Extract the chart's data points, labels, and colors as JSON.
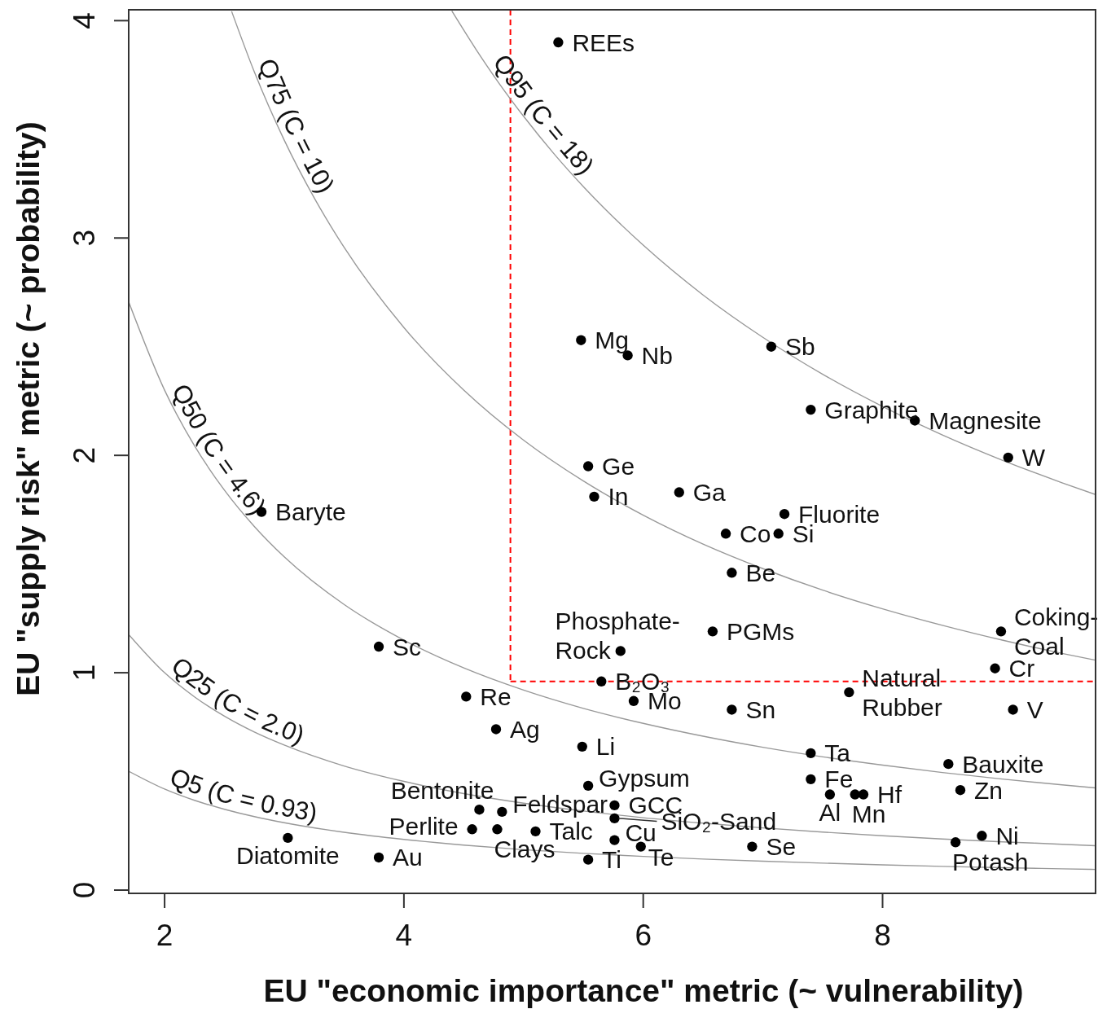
{
  "chart_data": {
    "type": "scatter",
    "xlabel": "EU \"economic importance\" metric (~ vulnerability)",
    "ylabel": "EU \"supply risk\" metric (~ probability)",
    "xlim": [
      1.7,
      9.78
    ],
    "ylim": [
      -0.015,
      4.05
    ],
    "xticks": [
      2,
      4,
      6,
      8
    ],
    "yticks": [
      0,
      1,
      2,
      3,
      4
    ],
    "series": [
      {
        "type": "line",
        "name": "Q5 (C = 0.93)",
        "color": "#999999",
        "x": [
          1.7,
          2,
          2.25,
          2.5,
          2.75,
          3,
          3.5,
          4,
          4.5,
          5,
          5.5,
          6,
          6.5,
          7,
          7.5,
          8,
          8.5,
          9,
          9.5,
          9.78
        ],
        "values": [
          0.547,
          0.465,
          0.413,
          0.372,
          0.338,
          0.31,
          0.266,
          0.233,
          0.207,
          0.186,
          0.169,
          0.155,
          0.143,
          0.133,
          0.124,
          0.116,
          0.109,
          0.103,
          0.098,
          0.095
        ]
      },
      {
        "type": "line",
        "name": "Q25 (C = 2.0)",
        "color": "#999999",
        "x": [
          1.7,
          2,
          2.25,
          2.5,
          2.75,
          3,
          3.5,
          4,
          4.5,
          5,
          5.5,
          6,
          6.5,
          7,
          7.5,
          8,
          8.5,
          9,
          9.5,
          9.78
        ],
        "values": [
          1.176,
          1.0,
          0.889,
          0.8,
          0.727,
          0.667,
          0.571,
          0.5,
          0.444,
          0.4,
          0.364,
          0.333,
          0.308,
          0.286,
          0.267,
          0.25,
          0.235,
          0.222,
          0.211,
          0.204
        ]
      },
      {
        "type": "line",
        "name": "Q50 (C = 4.6)",
        "color": "#999999",
        "x": [
          1.7,
          2,
          2.25,
          2.5,
          2.75,
          3,
          3.5,
          4,
          4.5,
          5,
          5.5,
          6,
          6.5,
          7,
          7.5,
          8,
          8.5,
          9,
          9.5,
          9.78
        ],
        "values": [
          2.706,
          2.3,
          2.044,
          1.84,
          1.673,
          1.533,
          1.314,
          1.15,
          1.022,
          0.92,
          0.836,
          0.767,
          0.708,
          0.657,
          0.613,
          0.575,
          0.541,
          0.511,
          0.484,
          0.47
        ]
      },
      {
        "type": "line",
        "name": "Q75 (C = 10)",
        "color": "#999999",
        "x": [
          2.56,
          2.75,
          3,
          3.25,
          3.5,
          4,
          4.5,
          5,
          5.5,
          6,
          6.5,
          7,
          7.5,
          8,
          8.5,
          9,
          9.5,
          9.78
        ],
        "values": [
          4.043,
          3.764,
          3.45,
          3.185,
          2.957,
          2.588,
          2.3,
          2.07,
          1.882,
          1.725,
          1.592,
          1.479,
          1.38,
          1.294,
          1.218,
          1.15,
          1.089,
          1.058
        ]
      },
      {
        "type": "line",
        "name": "Q95 (C = 18)",
        "color": "#999999",
        "x": [
          4.4,
          4.6,
          4.8,
          5,
          5.25,
          5.5,
          6,
          6.5,
          7,
          7.5,
          8,
          8.5,
          9,
          9.5,
          9.78
        ],
        "values": [
          4.045,
          3.87,
          3.708,
          3.56,
          3.39,
          3.236,
          2.967,
          2.738,
          2.543,
          2.373,
          2.225,
          2.094,
          1.978,
          1.874,
          1.82
        ]
      },
      {
        "color": "#000000",
        "marker": "circle",
        "x": [
          5.29,
          5.48,
          7.07,
          5.87,
          7.4,
          8.27,
          9.05,
          5.54,
          6.3,
          5.59,
          2.81,
          7.18,
          6.69,
          7.13,
          6.74,
          6.58,
          8.99,
          3.79,
          5.81,
          8.94,
          5.65,
          7.72,
          4.52,
          5.92,
          6.74,
          9.09,
          4.77,
          5.49,
          7.4,
          8.55,
          7.4,
          5.54,
          8.65,
          7.56,
          7.77,
          7.84,
          5.76,
          4.63,
          4.82,
          5.76,
          4.57,
          4.78,
          5.1,
          8.83,
          3.03,
          5.76,
          8.61,
          5.98,
          6.91,
          3.79,
          5.54
        ],
        "values": [
          3.9,
          2.53,
          2.5,
          2.46,
          2.21,
          2.16,
          1.99,
          1.95,
          1.83,
          1.81,
          1.74,
          1.73,
          1.64,
          1.64,
          1.46,
          1.19,
          1.19,
          1.12,
          1.1,
          1.02,
          0.96,
          0.91,
          0.89,
          0.87,
          0.83,
          0.83,
          0.74,
          0.66,
          0.63,
          0.58,
          0.51,
          0.48,
          0.46,
          0.44,
          0.44,
          0.44,
          0.39,
          0.37,
          0.36,
          0.33,
          0.28,
          0.28,
          0.27,
          0.25,
          0.24,
          0.23,
          0.22,
          0.2,
          0.2,
          0.15,
          0.14
        ]
      }
    ],
    "ref_lines": [
      {
        "axis": "x",
        "value": 4.89,
        "color": "#ff0000",
        "line_style": "dashed"
      },
      {
        "axis": "y",
        "value": 0.96,
        "color": "#ff0000",
        "line_style": "dashed"
      }
    ],
    "annotations": [
      {
        "text": "REEs",
        "x": 5.29,
        "y": 3.9
      },
      {
        "text": "Mg",
        "x": 5.48,
        "y": 2.53
      },
      {
        "text": "Sb",
        "x": 7.07,
        "y": 2.5
      },
      {
        "text": "Nb",
        "x": 5.87,
        "y": 2.46
      },
      {
        "text": "Graphite",
        "x": 7.4,
        "y": 2.21
      },
      {
        "text": "Magnesite",
        "x": 8.27,
        "y": 2.16
      },
      {
        "text": "W",
        "x": 9.05,
        "y": 1.99
      },
      {
        "text": "Ge",
        "x": 5.54,
        "y": 1.95
      },
      {
        "text": "Ga",
        "x": 6.3,
        "y": 1.83
      },
      {
        "text": "In",
        "x": 5.59,
        "y": 1.81
      },
      {
        "text": "Baryte",
        "x": 2.81,
        "y": 1.74
      },
      {
        "text": "Fluorite",
        "x": 7.18,
        "y": 1.73
      },
      {
        "text": "Co",
        "x": 6.69,
        "y": 1.64
      },
      {
        "text": "Si",
        "x": 7.13,
        "y": 1.64
      },
      {
        "text": "Be",
        "x": 6.74,
        "y": 1.46
      },
      {
        "text": "PGMs",
        "x": 6.58,
        "y": 1.19
      },
      {
        "text": "Coking-Coal",
        "x": 8.99,
        "y": 1.19
      },
      {
        "text": "Sc",
        "x": 3.79,
        "y": 1.12
      },
      {
        "text": "Phosphate-Rock",
        "x": 5.81,
        "y": 1.1
      },
      {
        "text": "Cr",
        "x": 8.94,
        "y": 1.02
      },
      {
        "text": "B₂O₃",
        "x": 5.65,
        "y": 0.96
      },
      {
        "text": "Natural Rubber",
        "x": 7.72,
        "y": 0.91
      },
      {
        "text": "Re",
        "x": 4.52,
        "y": 0.89
      },
      {
        "text": "Mo",
        "x": 5.92,
        "y": 0.87
      },
      {
        "text": "Sn",
        "x": 6.74,
        "y": 0.83
      },
      {
        "text": "V",
        "x": 9.09,
        "y": 0.83
      },
      {
        "text": "Ag",
        "x": 4.77,
        "y": 0.74
      },
      {
        "text": "Li",
        "x": 5.49,
        "y": 0.66
      },
      {
        "text": "Ta",
        "x": 7.4,
        "y": 0.63
      },
      {
        "text": "Bauxite",
        "x": 8.55,
        "y": 0.58
      },
      {
        "text": "Fe",
        "x": 7.4,
        "y": 0.51
      },
      {
        "text": "Gypsum",
        "x": 5.54,
        "y": 0.48
      },
      {
        "text": "Zn",
        "x": 8.65,
        "y": 0.46
      },
      {
        "text": "Al",
        "x": 7.56,
        "y": 0.44
      },
      {
        "text": "Mn",
        "x": 7.77,
        "y": 0.44
      },
      {
        "text": "Hf",
        "x": 7.84,
        "y": 0.44
      },
      {
        "text": "GCC",
        "x": 5.76,
        "y": 0.39
      },
      {
        "text": "Bentonite",
        "x": 4.63,
        "y": 0.37
      },
      {
        "text": "Feldspar",
        "x": 4.82,
        "y": 0.36
      },
      {
        "text": "SiO₂-Sand",
        "x": 5.76,
        "y": 0.33
      },
      {
        "text": "Perlite",
        "x": 4.57,
        "y": 0.28
      },
      {
        "text": "Clays",
        "x": 4.78,
        "y": 0.28
      },
      {
        "text": "Talc",
        "x": 5.1,
        "y": 0.27
      },
      {
        "text": "Ni",
        "x": 8.83,
        "y": 0.25
      },
      {
        "text": "Diatomite",
        "x": 3.03,
        "y": 0.24
      },
      {
        "text": "Cu",
        "x": 5.76,
        "y": 0.23
      },
      {
        "text": "Potash",
        "x": 8.61,
        "y": 0.22
      },
      {
        "text": "Te",
        "x": 5.98,
        "y": 0.2
      },
      {
        "text": "Se",
        "x": 6.91,
        "y": 0.2
      },
      {
        "text": "Au",
        "x": 3.79,
        "y": 0.15
      },
      {
        "text": "Ti",
        "x": 5.54,
        "y": 0.14
      }
    ]
  }
}
